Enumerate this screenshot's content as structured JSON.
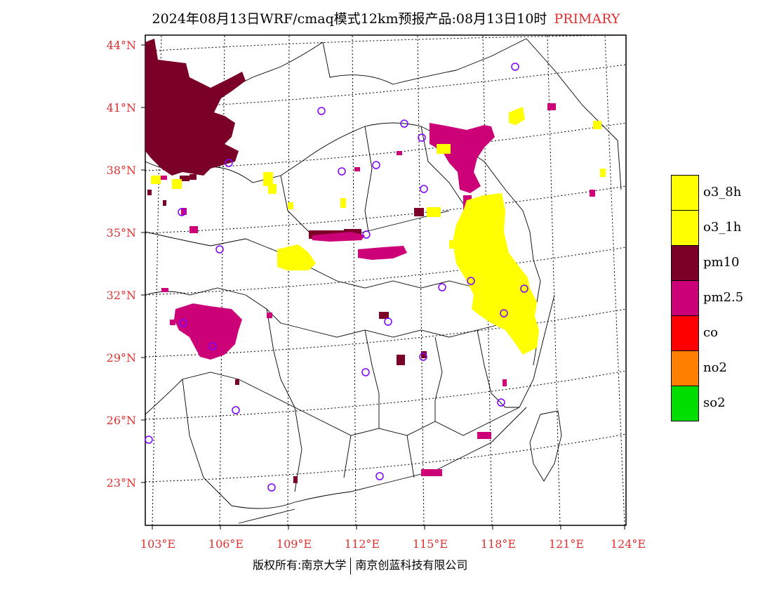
{
  "title": {
    "main": "2024年08月13日WRF/cmaq模式12km预报产品:08月13日10时",
    "tag": "PRIMARY"
  },
  "axes": {
    "lat_labels": [
      "44°N",
      "41°N",
      "38°N",
      "35°N",
      "32°N",
      "29°N",
      "26°N",
      "23°N"
    ],
    "lon_labels": [
      "103°E",
      "106°E",
      "109°E",
      "112°E",
      "115°E",
      "118°E",
      "121°E",
      "124°E"
    ]
  },
  "legend": {
    "items": [
      {
        "label": "o3_8h",
        "color": "#ffff00"
      },
      {
        "label": "o3_1h",
        "color": "#ffff00"
      },
      {
        "label": "pm10",
        "color": "#7a0028"
      },
      {
        "label": "pm2.5",
        "color": "#cc0077"
      },
      {
        "label": "co",
        "color": "#ff0000"
      },
      {
        "label": "no2",
        "color": "#ff8000"
      },
      {
        "label": "so2",
        "color": "#00dd00"
      }
    ]
  },
  "colors": {
    "pm10": "#7a0028",
    "pm25": "#cc0077",
    "o3": "#ffff00",
    "station": "#8000ff",
    "axis_label": "#e03030"
  },
  "copyright": {
    "left": "版权所有:南京大学",
    "right": "南京创蓝科技有限公司"
  }
}
